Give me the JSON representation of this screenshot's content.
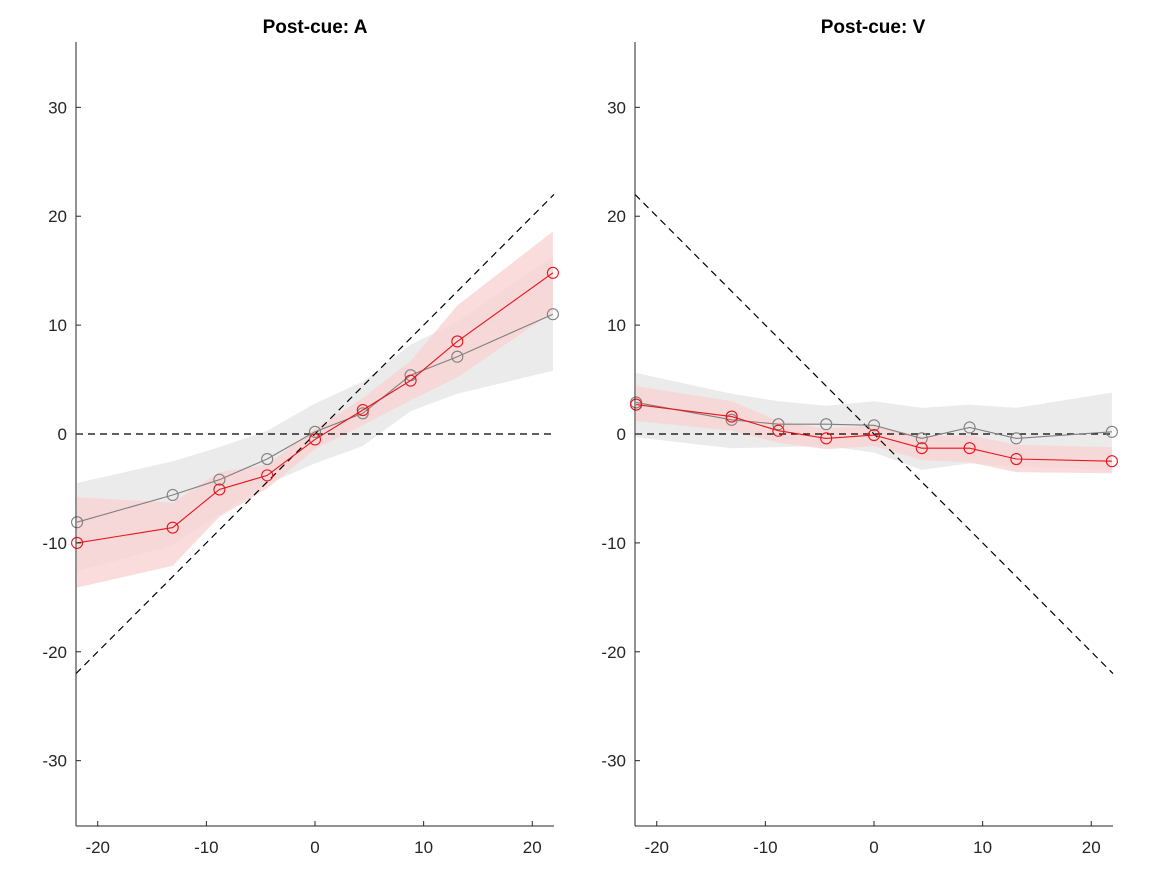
{
  "chart_data": [
    {
      "type": "line",
      "title": "Post-cue: A",
      "xlabel": "",
      "ylabel": "",
      "xlim": [
        -22,
        22
      ],
      "ylim": [
        -36,
        36
      ],
      "xticks": [
        -20,
        -10,
        0,
        10,
        20
      ],
      "yticks": [
        -30,
        -20,
        -10,
        0,
        10,
        20,
        30
      ],
      "grid": false,
      "reference_lines": [
        {
          "style": "dashed",
          "color": "#000000",
          "x": [
            -22,
            22
          ],
          "y": [
            0,
            0
          ]
        },
        {
          "style": "dashed",
          "color": "#000000",
          "x": [
            -22,
            22
          ],
          "y": [
            -22,
            22
          ]
        }
      ],
      "series": [
        {
          "color": "#808080",
          "band_color": "#e6e6e6",
          "x": [
            -21.9,
            -13.1,
            -8.8,
            -4.4,
            0,
            4.4,
            8.8,
            13.1,
            21.9
          ],
          "y": [
            -8.1,
            -5.6,
            -4.2,
            -2.3,
            0.2,
            1.9,
            5.4,
            7.1,
            11.0
          ],
          "lower": [
            -12.6,
            -10.2,
            -7.4,
            -4.6,
            -2.7,
            -1.1,
            2.1,
            3.7,
            5.8
          ],
          "upper": [
            -4.5,
            -2.5,
            -1.2,
            0.3,
            2.8,
            4.8,
            8.2,
            10.3,
            16.3
          ]
        },
        {
          "color": "#e8141c",
          "band_color": "#f9d3d3",
          "x": [
            -21.9,
            -13.1,
            -8.8,
            -4.4,
            0,
            4.4,
            8.8,
            13.1,
            21.9
          ],
          "y": [
            -10.0,
            -8.6,
            -5.1,
            -3.8,
            -0.5,
            2.2,
            4.9,
            8.5,
            14.8
          ],
          "lower": [
            -14.1,
            -12.1,
            -7.6,
            -5.0,
            -1.4,
            0.8,
            3.1,
            5.2,
            11.2
          ],
          "upper": [
            -5.8,
            -6.3,
            -3.5,
            -2.8,
            0.5,
            3.3,
            6.7,
            11.8,
            18.6
          ]
        }
      ]
    },
    {
      "type": "line",
      "title": "Post-cue: V",
      "xlabel": "",
      "ylabel": "",
      "xlim": [
        -22,
        22
      ],
      "ylim": [
        -36,
        36
      ],
      "xticks": [
        -20,
        -10,
        0,
        10,
        20
      ],
      "yticks": [
        -30,
        -20,
        -10,
        0,
        10,
        20,
        30
      ],
      "grid": false,
      "reference_lines": [
        {
          "style": "dashed",
          "color": "#000000",
          "x": [
            -22,
            22
          ],
          "y": [
            0,
            0
          ]
        },
        {
          "style": "dashed",
          "color": "#000000",
          "x": [
            -22,
            22
          ],
          "y": [
            22,
            -22
          ]
        }
      ],
      "series": [
        {
          "color": "#808080",
          "band_color": "#e6e6e6",
          "x": [
            -21.9,
            -13.1,
            -8.8,
            -4.4,
            0,
            4.4,
            8.8,
            13.1,
            21.9
          ],
          "y": [
            2.9,
            1.3,
            0.9,
            0.9,
            0.8,
            -0.4,
            0.6,
            -0.4,
            0.2
          ],
          "lower": [
            -0.3,
            -1.3,
            -1.2,
            -1.1,
            -1.7,
            -3.3,
            -2.7,
            -3.0,
            -3.3
          ],
          "upper": [
            5.6,
            3.7,
            3.0,
            2.6,
            3.0,
            2.4,
            2.7,
            2.4,
            3.8
          ]
        },
        {
          "color": "#e8141c",
          "band_color": "#f9d3d3",
          "x": [
            -21.9,
            -13.1,
            -8.8,
            -4.4,
            0,
            4.4,
            8.8,
            13.1,
            21.9
          ],
          "y": [
            2.7,
            1.6,
            0.3,
            -0.4,
            -0.1,
            -1.3,
            -1.3,
            -2.3,
            -2.5
          ],
          "lower": [
            1.2,
            0.3,
            -0.8,
            -1.4,
            -1.1,
            -2.4,
            -2.6,
            -3.5,
            -3.6
          ],
          "upper": [
            4.4,
            3.0,
            1.2,
            0.5,
            0.8,
            -0.2,
            -0.1,
            -1.0,
            -1.2
          ]
        }
      ]
    }
  ]
}
